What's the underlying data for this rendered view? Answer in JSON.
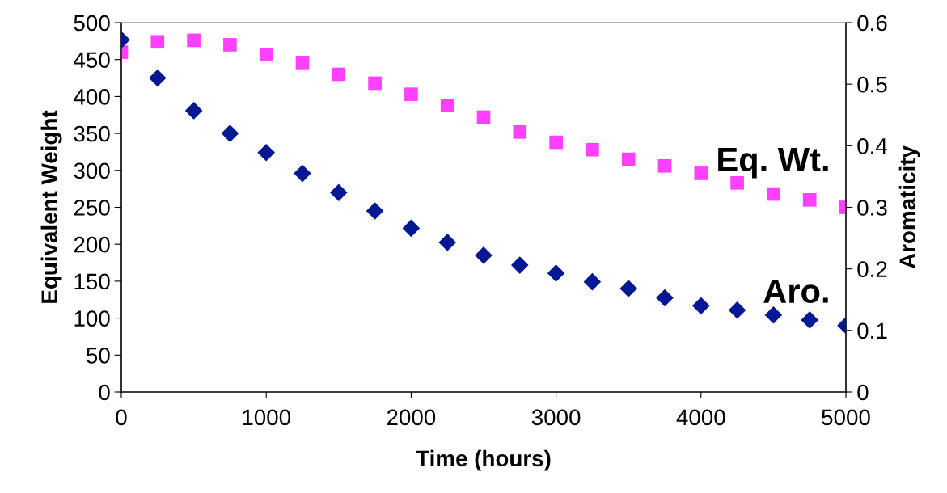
{
  "chart_data": {
    "type": "scatter",
    "xlabel": "Time (hours)",
    "ylabel": "Equivalent Weight",
    "y2label": "Aromaticity",
    "x": [
      0,
      250,
      500,
      750,
      1000,
      1250,
      1500,
      1750,
      2000,
      2250,
      2500,
      2750,
      3000,
      3250,
      3500,
      3750,
      4000,
      4250,
      4500,
      4750,
      5000
    ],
    "series": [
      {
        "name": "Eq. Wt.",
        "color": "#ff40ff",
        "marker": "square",
        "values": [
          460,
          474,
          476,
          470,
          457,
          446,
          430,
          418,
          403,
          388,
          372,
          352,
          338,
          328,
          315,
          306,
          296,
          283,
          268,
          260,
          250
        ]
      },
      {
        "name": "Aro.",
        "color": "#041893",
        "marker": "diamond",
        "axis": "y2",
        "values": [
          0.572,
          0.51,
          0.457,
          0.42,
          0.389,
          0.355,
          0.324,
          0.294,
          0.266,
          0.243,
          0.222,
          0.206,
          0.193,
          0.179,
          0.168,
          0.153,
          0.14,
          0.133,
          0.125,
          0.117,
          0.108
        ]
      }
    ],
    "xlim": [
      0,
      5000
    ],
    "xticks": [
      0,
      1000,
      2000,
      3000,
      4000,
      5000
    ],
    "ylim": [
      0,
      500
    ],
    "yticks": [
      0,
      50,
      100,
      150,
      200,
      250,
      300,
      350,
      400,
      450,
      500
    ],
    "y2lim": [
      0,
      0.6
    ],
    "y2ticks": [
      0,
      0.1,
      0.2,
      0.3,
      0.4,
      0.5,
      0.6
    ],
    "grid": false,
    "legend": false
  }
}
